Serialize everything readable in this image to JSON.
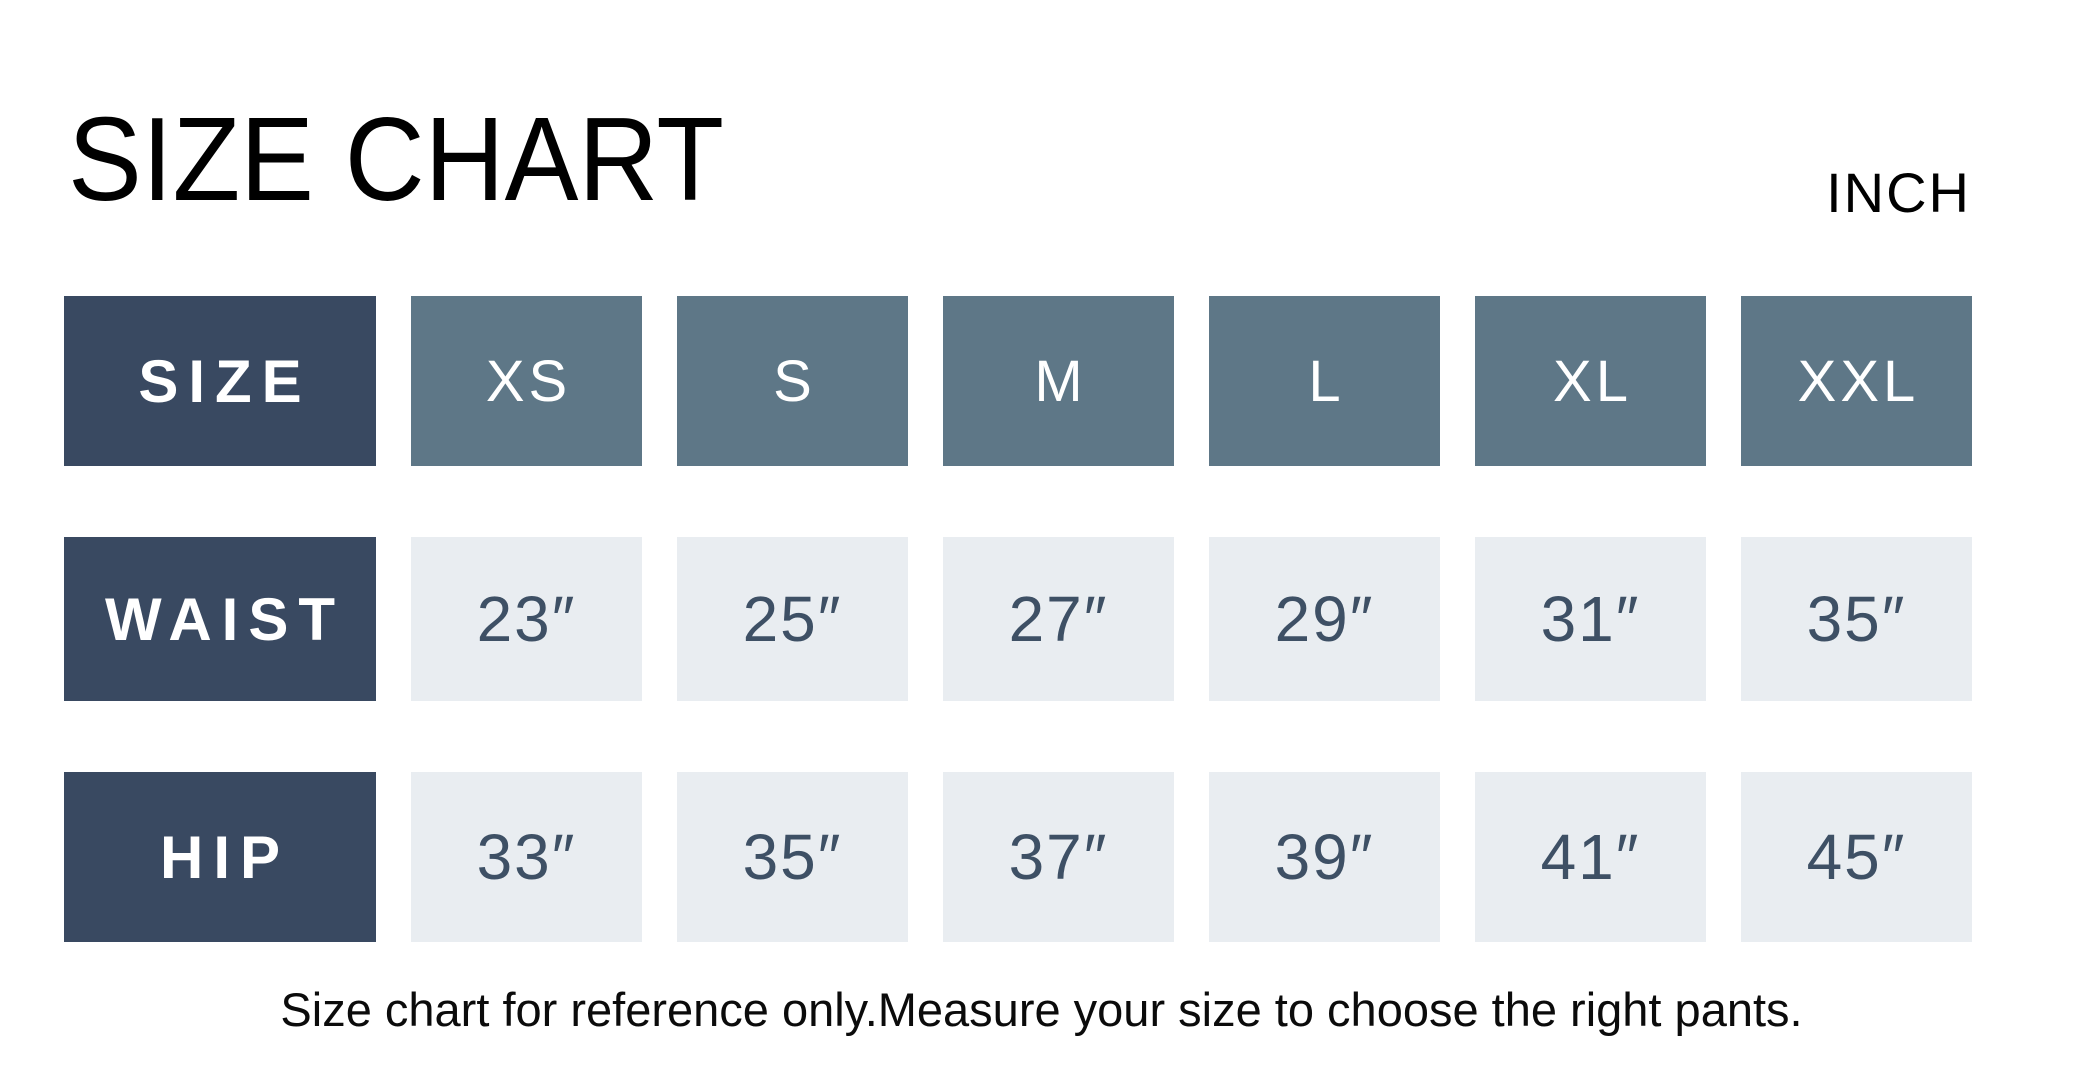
{
  "header": {
    "title": "SIZE CHART",
    "unit_label": "INCH"
  },
  "footnote": "Size chart for reference only.Measure your size to choose the right pants.",
  "colors": {
    "label_cell_bg": "#394961",
    "size_header_bg": "#5E7787",
    "value_cell_bg": "#E9EDF1",
    "value_text": "#3E5065",
    "cell_text_on_dark": "#FFFFFF",
    "ink": "#000000",
    "page_bg": "#FFFFFF"
  },
  "chart_data": {
    "type": "table",
    "title": "SIZE CHART",
    "unit": "INCH",
    "corner_label": "SIZE",
    "columns": [
      "XS",
      "S",
      "M",
      "L",
      "XL",
      "XXL"
    ],
    "rows": [
      {
        "label": "WAIST",
        "values": [
          "23″",
          "25″",
          "27″",
          "29″",
          "31″",
          "35″"
        ],
        "numeric": [
          23,
          25,
          27,
          29,
          31,
          35
        ]
      },
      {
        "label": "HIP",
        "values": [
          "33″",
          "35″",
          "37″",
          "39″",
          "41″",
          "45″"
        ],
        "numeric": [
          33,
          35,
          37,
          39,
          41,
          45
        ]
      }
    ],
    "note": "Size chart for reference only.Measure your size to choose the right pants."
  }
}
